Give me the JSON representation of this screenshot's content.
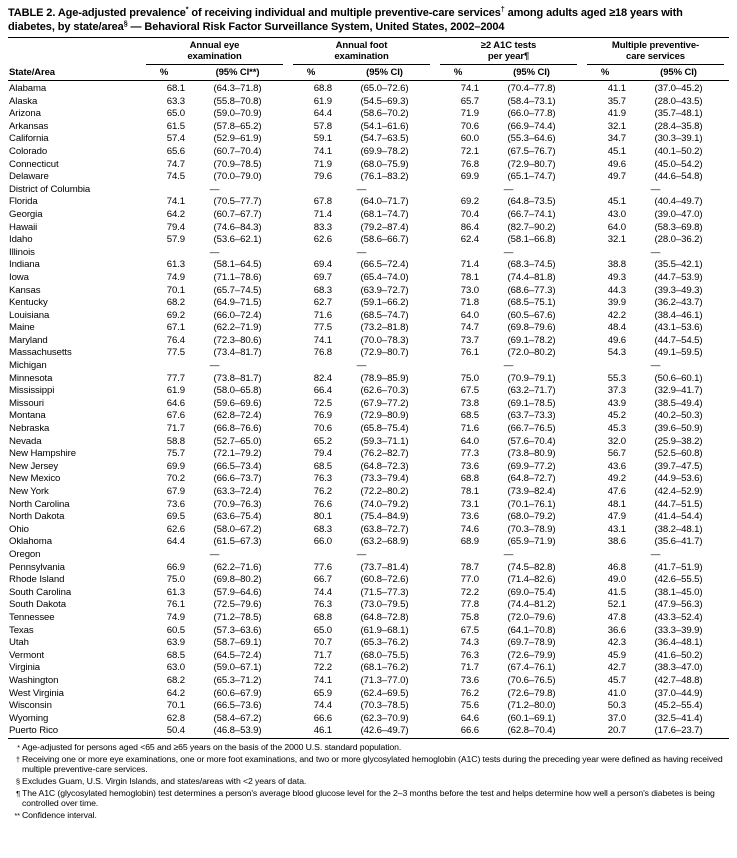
{
  "table": {
    "title_segments": [
      {
        "t": "TABLE 2. Age-adjusted prevalence",
        "sup": false
      },
      {
        "t": "*",
        "sup": true
      },
      {
        "t": " of receiving individual and multiple preventive-care services",
        "sup": false
      },
      {
        "t": "†",
        "sup": true
      },
      {
        "t": " among adults aged ≥18 years with diabetes, by state/area",
        "sup": false
      },
      {
        "t": "§",
        "sup": true
      },
      {
        "t": " — Behavioral Risk Factor Surveillance System, United States, 2002–2004",
        "sup": false
      }
    ],
    "header": {
      "state_col": "State/Area",
      "groups": [
        {
          "line1": "Annual eye",
          "line2": "examination",
          "pct": "%",
          "ci": "(95% CI**)"
        },
        {
          "line1": "Annual foot",
          "line2": "examination",
          "pct": "%",
          "ci": "(95% CI)"
        },
        {
          "line1": "≥2 A1C tests",
          "line2": "per year¶",
          "pct": "%",
          "ci": "(95% CI)"
        },
        {
          "line1": "Multiple preventive-",
          "line2": "care services",
          "pct": "%",
          "ci": "(95% CI)"
        }
      ]
    },
    "no_data_marker": "—",
    "rows": [
      [
        "Alabama",
        "68.1",
        "(64.3–71.8)",
        "68.8",
        "(65.0–72.6)",
        "74.1",
        "(70.4–77.8)",
        "41.1",
        "(37.0–45.2)"
      ],
      [
        "Alaska",
        "63.3",
        "(55.8–70.8)",
        "61.9",
        "(54.5–69.3)",
        "65.7",
        "(58.4–73.1)",
        "35.7",
        "(28.0–43.5)"
      ],
      [
        "Arizona",
        "65.0",
        "(59.0–70.9)",
        "64.4",
        "(58.6–70.2)",
        "71.9",
        "(66.0–77.8)",
        "41.9",
        "(35.7–48.1)"
      ],
      [
        "Arkansas",
        "61.5",
        "(57.8–65.2)",
        "57.8",
        "(54.1–61.6)",
        "70.6",
        "(66.9–74.4)",
        "32.1",
        "(28.4–35.8)"
      ],
      [
        "California",
        "57.4",
        "(52.9–61.9)",
        "59.1",
        "(54.7–63.5)",
        "60.0",
        "(55.3–64.6)",
        "34.7",
        "(30.3–39.1)"
      ],
      [
        "Colorado",
        "65.6",
        "(60.7–70.4)",
        "74.1",
        "(69.9–78.2)",
        "72.1",
        "(67.5–76.7)",
        "45.1",
        "(40.1–50.2)"
      ],
      [
        "Connecticut",
        "74.7",
        "(70.9–78.5)",
        "71.9",
        "(68.0–75.9)",
        "76.8",
        "(72.9–80.7)",
        "49.6",
        "(45.0–54.2)"
      ],
      [
        "Delaware",
        "74.5",
        "(70.0–79.0)",
        "79.6",
        "(76.1–83.2)",
        "69.9",
        "(65.1–74.7)",
        "49.7",
        "(44.6–54.8)"
      ],
      [
        "District of Columbia",
        "—",
        "—",
        "—",
        "—"
      ],
      [
        "Florida",
        "74.1",
        "(70.5–77.7)",
        "67.8",
        "(64.0–71.7)",
        "69.2",
        "(64.8–73.5)",
        "45.1",
        "(40.4–49.7)"
      ],
      [
        "Georgia",
        "64.2",
        "(60.7–67.7)",
        "71.4",
        "(68.1–74.7)",
        "70.4",
        "(66.7–74.1)",
        "43.0",
        "(39.0–47.0)"
      ],
      [
        "Hawaii",
        "79.4",
        "(74.6–84.3)",
        "83.3",
        "(79.2–87.4)",
        "86.4",
        "(82.7–90.2)",
        "64.0",
        "(58.3–69.8)"
      ],
      [
        "Idaho",
        "57.9",
        "(53.6–62.1)",
        "62.6",
        "(58.6–66.7)",
        "62.4",
        "(58.1–66.8)",
        "32.1",
        "(28.0–36.2)"
      ],
      [
        "Illinois",
        "—",
        "—",
        "—",
        "—"
      ],
      [
        "Indiana",
        "61.3",
        "(58.1–64.5)",
        "69.4",
        "(66.5–72.4)",
        "71.4",
        "(68.3–74.5)",
        "38.8",
        "(35.5–42.1)"
      ],
      [
        "Iowa",
        "74.9",
        "(71.1–78.6)",
        "69.7",
        "(65.4–74.0)",
        "78.1",
        "(74.4–81.8)",
        "49.3",
        "(44.7–53.9)"
      ],
      [
        "Kansas",
        "70.1",
        "(65.7–74.5)",
        "68.3",
        "(63.9–72.7)",
        "73.0",
        "(68.6–77.3)",
        "44.3",
        "(39.3–49.3)"
      ],
      [
        "Kentucky",
        "68.2",
        "(64.9–71.5)",
        "62.7",
        "(59.1–66.2)",
        "71.8",
        "(68.5–75.1)",
        "39.9",
        "(36.2–43.7)"
      ],
      [
        "Louisiana",
        "69.2",
        "(66.0–72.4)",
        "71.6",
        "(68.5–74.7)",
        "64.0",
        "(60.5–67.6)",
        "42.2",
        "(38.4–46.1)"
      ],
      [
        "Maine",
        "67.1",
        "(62.2–71.9)",
        "77.5",
        "(73.2–81.8)",
        "74.7",
        "(69.8–79.6)",
        "48.4",
        "(43.1–53.6)"
      ],
      [
        "Maryland",
        "76.4",
        "(72.3–80.6)",
        "74.1",
        "(70.0–78.3)",
        "73.7",
        "(69.1–78.2)",
        "49.6",
        "(44.7–54.5)"
      ],
      [
        "Massachusetts",
        "77.5",
        "(73.4–81.7)",
        "76.8",
        "(72.9–80.7)",
        "76.1",
        "(72.0–80.2)",
        "54.3",
        "(49.1–59.5)"
      ],
      [
        "Michigan",
        "—",
        "—",
        "—",
        "—"
      ],
      [
        "Minnesota",
        "77.7",
        "(73.8–81.7)",
        "82.4",
        "(78.9–85.9)",
        "75.0",
        "(70.9–79.1)",
        "55.3",
        "(50.6–60.1)"
      ],
      [
        "Mississippi",
        "61.9",
        "(58.0–65.8)",
        "66.4",
        "(62.6–70.3)",
        "67.5",
        "(63.2–71.7)",
        "37.3",
        "(32.9–41.7)"
      ],
      [
        "Missouri",
        "64.6",
        "(59.6–69.6)",
        "72.5",
        "(67.9–77.2)",
        "73.8",
        "(69.1–78.5)",
        "43.9",
        "(38.5–49.4)"
      ],
      [
        "Montana",
        "67.6",
        "(62.8–72.4)",
        "76.9",
        "(72.9–80.9)",
        "68.5",
        "(63.7–73.3)",
        "45.2",
        "(40.2–50.3)"
      ],
      [
        "Nebraska",
        "71.7",
        "(66.8–76.6)",
        "70.6",
        "(65.8–75.4)",
        "71.6",
        "(66.7–76.5)",
        "45.3",
        "(39.6–50.9)"
      ],
      [
        "Nevada",
        "58.8",
        "(52.7–65.0)",
        "65.2",
        "(59.3–71.1)",
        "64.0",
        "(57.6–70.4)",
        "32.0",
        "(25.9–38.2)"
      ],
      [
        "New Hampshire",
        "75.7",
        "(72.1–79.2)",
        "79.4",
        "(76.2–82.7)",
        "77.3",
        "(73.8–80.9)",
        "56.7",
        "(52.5–60.8)"
      ],
      [
        "New Jersey",
        "69.9",
        "(66.5–73.4)",
        "68.5",
        "(64.8–72.3)",
        "73.6",
        "(69.9–77.2)",
        "43.6",
        "(39.7–47.5)"
      ],
      [
        "New Mexico",
        "70.2",
        "(66.6–73.7)",
        "76.3",
        "(73.3–79.4)",
        "68.8",
        "(64.8–72.7)",
        "49.2",
        "(44.9–53.6)"
      ],
      [
        "New York",
        "67.9",
        "(63.3–72.4)",
        "76.2",
        "(72.2–80.2)",
        "78.1",
        "(73.9–82.4)",
        "47.6",
        "(42.4–52.9)"
      ],
      [
        "North Carolina",
        "73.6",
        "(70.9–76.3)",
        "76.6",
        "(74.0–79.2)",
        "73.1",
        "(70.1–76.1)",
        "48.1",
        "(44.7–51.5)"
      ],
      [
        "North Dakota",
        "69.5",
        "(63.6–75.4)",
        "80.1",
        "(75.4–84.9)",
        "73.6",
        "(68.0–79.2)",
        "47.9",
        "(41.4–54.4)"
      ],
      [
        "Ohio",
        "62.6",
        "(58.0–67.2)",
        "68.3",
        "(63.8–72.7)",
        "74.6",
        "(70.3–78.9)",
        "43.1",
        "(38.2–48.1)"
      ],
      [
        "Oklahoma",
        "64.4",
        "(61.5–67.3)",
        "66.0",
        "(63.2–68.9)",
        "68.9",
        "(65.9–71.9)",
        "38.6",
        "(35.6–41.7)"
      ],
      [
        "Oregon",
        "—",
        "—",
        "—",
        "—"
      ],
      [
        "Pennsylvania",
        "66.9",
        "(62.2–71.6)",
        "77.6",
        "(73.7–81.4)",
        "78.7",
        "(74.5–82.8)",
        "46.8",
        "(41.7–51.9)"
      ],
      [
        "Rhode Island",
        "75.0",
        "(69.8–80.2)",
        "66.7",
        "(60.8–72.6)",
        "77.0",
        "(71.4–82.6)",
        "49.0",
        "(42.6–55.5)"
      ],
      [
        "South Carolina",
        "61.3",
        "(57.9–64.6)",
        "74.4",
        "(71.5–77.3)",
        "72.2",
        "(69.0–75.4)",
        "41.5",
        "(38.1–45.0)"
      ],
      [
        "South Dakota",
        "76.1",
        "(72.5–79.6)",
        "76.3",
        "(73.0–79.5)",
        "77.8",
        "(74.4–81.2)",
        "52.1",
        "(47.9–56.3)"
      ],
      [
        "Tennessee",
        "74.9",
        "(71.2–78.5)",
        "68.8",
        "(64.8–72.8)",
        "75.8",
        "(72.0–79.6)",
        "47.8",
        "(43.3–52.4)"
      ],
      [
        "Texas",
        "60.5",
        "(57.3–63.6)",
        "65.0",
        "(61.9–68.1)",
        "67.5",
        "(64.1–70.8)",
        "36.6",
        "(33.3–39.9)"
      ],
      [
        "Utah",
        "63.9",
        "(58.7–69.1)",
        "70.7",
        "(65.3–76.2)",
        "74.3",
        "(69.7–78.9)",
        "42.3",
        "(36.4–48.1)"
      ],
      [
        "Vermont",
        "68.5",
        "(64.5–72.4)",
        "71.7",
        "(68.0–75.5)",
        "76.3",
        "(72.6–79.9)",
        "45.9",
        "(41.6–50.2)"
      ],
      [
        "Virginia",
        "63.0",
        "(59.0–67.1)",
        "72.2",
        "(68.1–76.2)",
        "71.7",
        "(67.4–76.1)",
        "42.7",
        "(38.3–47.0)"
      ],
      [
        "Washington",
        "68.2",
        "(65.3–71.2)",
        "74.1",
        "(71.3–77.0)",
        "73.6",
        "(70.6–76.5)",
        "45.7",
        "(42.7–48.8)"
      ],
      [
        "West Virginia",
        "64.2",
        "(60.6–67.9)",
        "65.9",
        "(62.4–69.5)",
        "76.2",
        "(72.6–79.8)",
        "41.0",
        "(37.0–44.9)"
      ],
      [
        "Wisconsin",
        "70.1",
        "(66.5–73.6)",
        "74.4",
        "(70.3–78.5)",
        "75.6",
        "(71.2–80.0)",
        "50.3",
        "(45.2–55.4)"
      ],
      [
        "Wyoming",
        "62.8",
        "(58.4–67.2)",
        "66.6",
        "(62.3–70.9)",
        "64.6",
        "(60.1–69.1)",
        "37.0",
        "(32.5–41.4)"
      ],
      [
        "Puerto Rico",
        "50.4",
        "(46.8–53.9)",
        "46.1",
        "(42.6–49.7)",
        "66.6",
        "(62.8–70.4)",
        "20.7",
        "(17.6–23.7)"
      ]
    ],
    "footnotes": [
      {
        "marker": "*",
        "text": "Age-adjusted for persons aged <65 and ≥65 years on the basis of the 2000 U.S. standard population."
      },
      {
        "marker": "†",
        "text": "Receiving one or more eye examinations, one or more foot examinations, and two or more glycosylated hemoglobin (A1C) tests during the preceding year were defined as having received multiple preventive-care services."
      },
      {
        "marker": "§",
        "text": "Excludes Guam, U.S. Virgin Islands, and states/areas with <2 years of data."
      },
      {
        "marker": "¶",
        "text": "The A1C (glycosylated hemoglobin) test determines a person's average blood glucose level for the 2–3 months before the test and helps determine how well a person's diabetes is being controlled over time."
      },
      {
        "marker": "**",
        "text": "Confidence interval."
      }
    ]
  }
}
